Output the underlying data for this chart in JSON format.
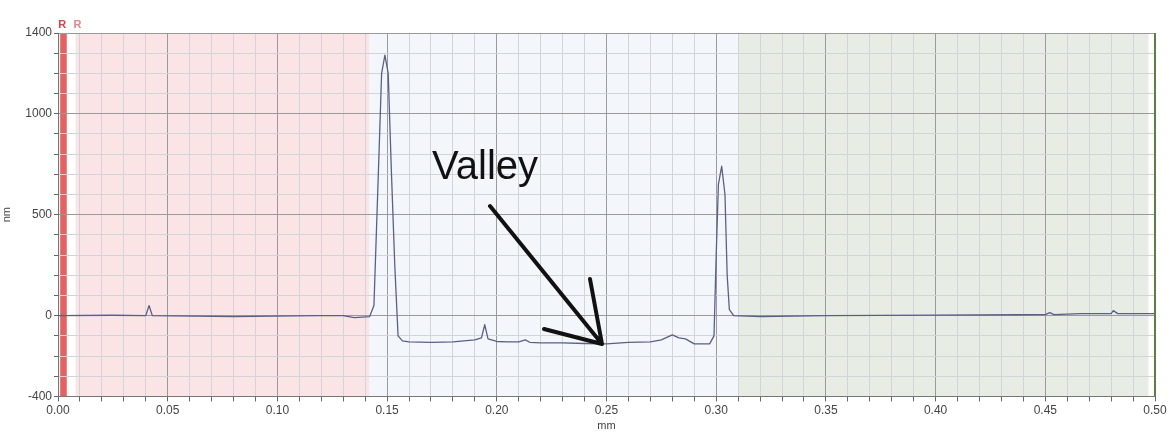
{
  "chart_data": {
    "type": "line",
    "xlabel": "mm",
    "ylabel": "nm",
    "x": [
      0,
      0.025,
      0.04,
      0.0415,
      0.043,
      0.08,
      0.118,
      0.13,
      0.135,
      0.142,
      0.144,
      0.146,
      0.1475,
      0.149,
      0.1505,
      0.152,
      0.1535,
      0.155,
      0.157,
      0.16,
      0.17,
      0.18,
      0.185,
      0.19,
      0.193,
      0.1945,
      0.196,
      0.2,
      0.205,
      0.21,
      0.213,
      0.215,
      0.22,
      0.23,
      0.24,
      0.25,
      0.26,
      0.27,
      0.275,
      0.28,
      0.283,
      0.286,
      0.29,
      0.297,
      0.299,
      0.3,
      0.301,
      0.3025,
      0.304,
      0.305,
      0.306,
      0.308,
      0.32,
      0.35,
      0.4,
      0.45,
      0.452,
      0.454,
      0.466,
      0.48,
      0.481,
      0.483,
      0.5
    ],
    "series": [
      {
        "color": "#5a5f8a",
        "values": [
          0,
          2,
          0,
          50,
          0,
          -5,
          0,
          0,
          -10,
          -5,
          50,
          700,
          1200,
          1290,
          1200,
          700,
          250,
          -100,
          -125,
          -130,
          -132,
          -130,
          -125,
          -120,
          -110,
          -45,
          -115,
          -128,
          -130,
          -130,
          -120,
          -132,
          -135,
          -135,
          -138,
          -140,
          -132,
          -130,
          -120,
          -95,
          -110,
          -115,
          -140,
          -140,
          -100,
          300,
          650,
          740,
          600,
          200,
          30,
          0,
          -5,
          0,
          3,
          5,
          15,
          5,
          10,
          10,
          25,
          10,
          10
        ]
      }
    ],
    "xlim": [
      0,
      0.5
    ],
    "xticks": [
      {
        "value": 0,
        "label": "0.00"
      },
      {
        "value": 0.01,
        "label": null
      },
      {
        "value": 0.02,
        "label": null
      },
      {
        "value": 0.03,
        "label": null
      },
      {
        "value": 0.04,
        "label": null
      },
      {
        "value": 0.05,
        "label": "0.05"
      },
      {
        "value": 0.06,
        "label": null
      },
      {
        "value": 0.07,
        "label": null
      },
      {
        "value": 0.08,
        "label": null
      },
      {
        "value": 0.09,
        "label": null
      },
      {
        "value": 0.1,
        "label": "0.10"
      },
      {
        "value": 0.11,
        "label": null
      },
      {
        "value": 0.12,
        "label": null
      },
      {
        "value": 0.13,
        "label": null
      },
      {
        "value": 0.14,
        "label": null
      },
      {
        "value": 0.15,
        "label": "0.15"
      },
      {
        "value": 0.16,
        "label": null
      },
      {
        "value": 0.17,
        "label": null
      },
      {
        "value": 0.18,
        "label": null
      },
      {
        "value": 0.19,
        "label": null
      },
      {
        "value": 0.2,
        "label": "0.20"
      },
      {
        "value": 0.21,
        "label": null
      },
      {
        "value": 0.22,
        "label": null
      },
      {
        "value": 0.23,
        "label": null
      },
      {
        "value": 0.24,
        "label": null
      },
      {
        "value": 0.25,
        "label": "0.25"
      },
      {
        "value": 0.26,
        "label": null
      },
      {
        "value": 0.27,
        "label": null
      },
      {
        "value": 0.28,
        "label": null
      },
      {
        "value": 0.29,
        "label": null
      },
      {
        "value": 0.3,
        "label": "0.30"
      },
      {
        "value": 0.31,
        "label": null
      },
      {
        "value": 0.32,
        "label": null
      },
      {
        "value": 0.33,
        "label": null
      },
      {
        "value": 0.34,
        "label": null
      },
      {
        "value": 0.35,
        "label": "0.35"
      },
      {
        "value": 0.36,
        "label": null
      },
      {
        "value": 0.37,
        "label": null
      },
      {
        "value": 0.38,
        "label": null
      },
      {
        "value": 0.39,
        "label": null
      },
      {
        "value": 0.4,
        "label": "0.40"
      },
      {
        "value": 0.41,
        "label": null
      },
      {
        "value": 0.42,
        "label": null
      },
      {
        "value": 0.43,
        "label": null
      },
      {
        "value": 0.44,
        "label": null
      },
      {
        "value": 0.45,
        "label": "0.45"
      },
      {
        "value": 0.46,
        "label": null
      },
      {
        "value": 0.47,
        "label": null
      },
      {
        "value": 0.48,
        "label": null
      },
      {
        "value": 0.49,
        "label": null
      },
      {
        "value": 0.5,
        "label": "0.50"
      }
    ],
    "ylim": [
      -400,
      1400
    ],
    "yticks": [
      -400,
      {
        "value": -300,
        "label": null
      },
      {
        "value": -200,
        "label": null
      },
      {
        "value": -100,
        "label": null
      },
      0,
      {
        "value": 100,
        "label": null
      },
      {
        "value": 200,
        "label": null
      },
      {
        "value": 300,
        "label": null
      },
      {
        "value": 400,
        "label": null
      },
      500,
      {
        "value": 600,
        "label": null
      },
      {
        "value": 700,
        "label": null
      },
      {
        "value": 800,
        "label": null
      },
      {
        "value": 900,
        "label": null
      },
      1000,
      {
        "value": 1100,
        "label": null
      },
      {
        "value": 1200,
        "label": null
      },
      {
        "value": 1300,
        "label": null
      },
      1400
    ],
    "grid": true,
    "legend": false,
    "marker": "none",
    "line_style": "solid",
    "bands": [
      {
        "axis": "x",
        "from": 0.001,
        "to": 0.004,
        "label": "R",
        "color": "#e8605f"
      },
      {
        "axis": "x",
        "from": 0.008,
        "to": 0.142,
        "label": "R",
        "color": "#fbe4e5"
      },
      {
        "axis": "x",
        "from": 0.142,
        "to": 0.31,
        "color": "#f3f7fc"
      },
      {
        "axis": "x",
        "from": 0.31,
        "to": 0.497,
        "color": "#e7ede4"
      }
    ],
    "ref_lines": [
      {
        "axis": "x",
        "value": 0.5,
        "color": "#5f7f3f"
      }
    ],
    "annotations": [
      {
        "text": "Valley",
        "x": 0.248,
        "y": -140
      }
    ]
  }
}
